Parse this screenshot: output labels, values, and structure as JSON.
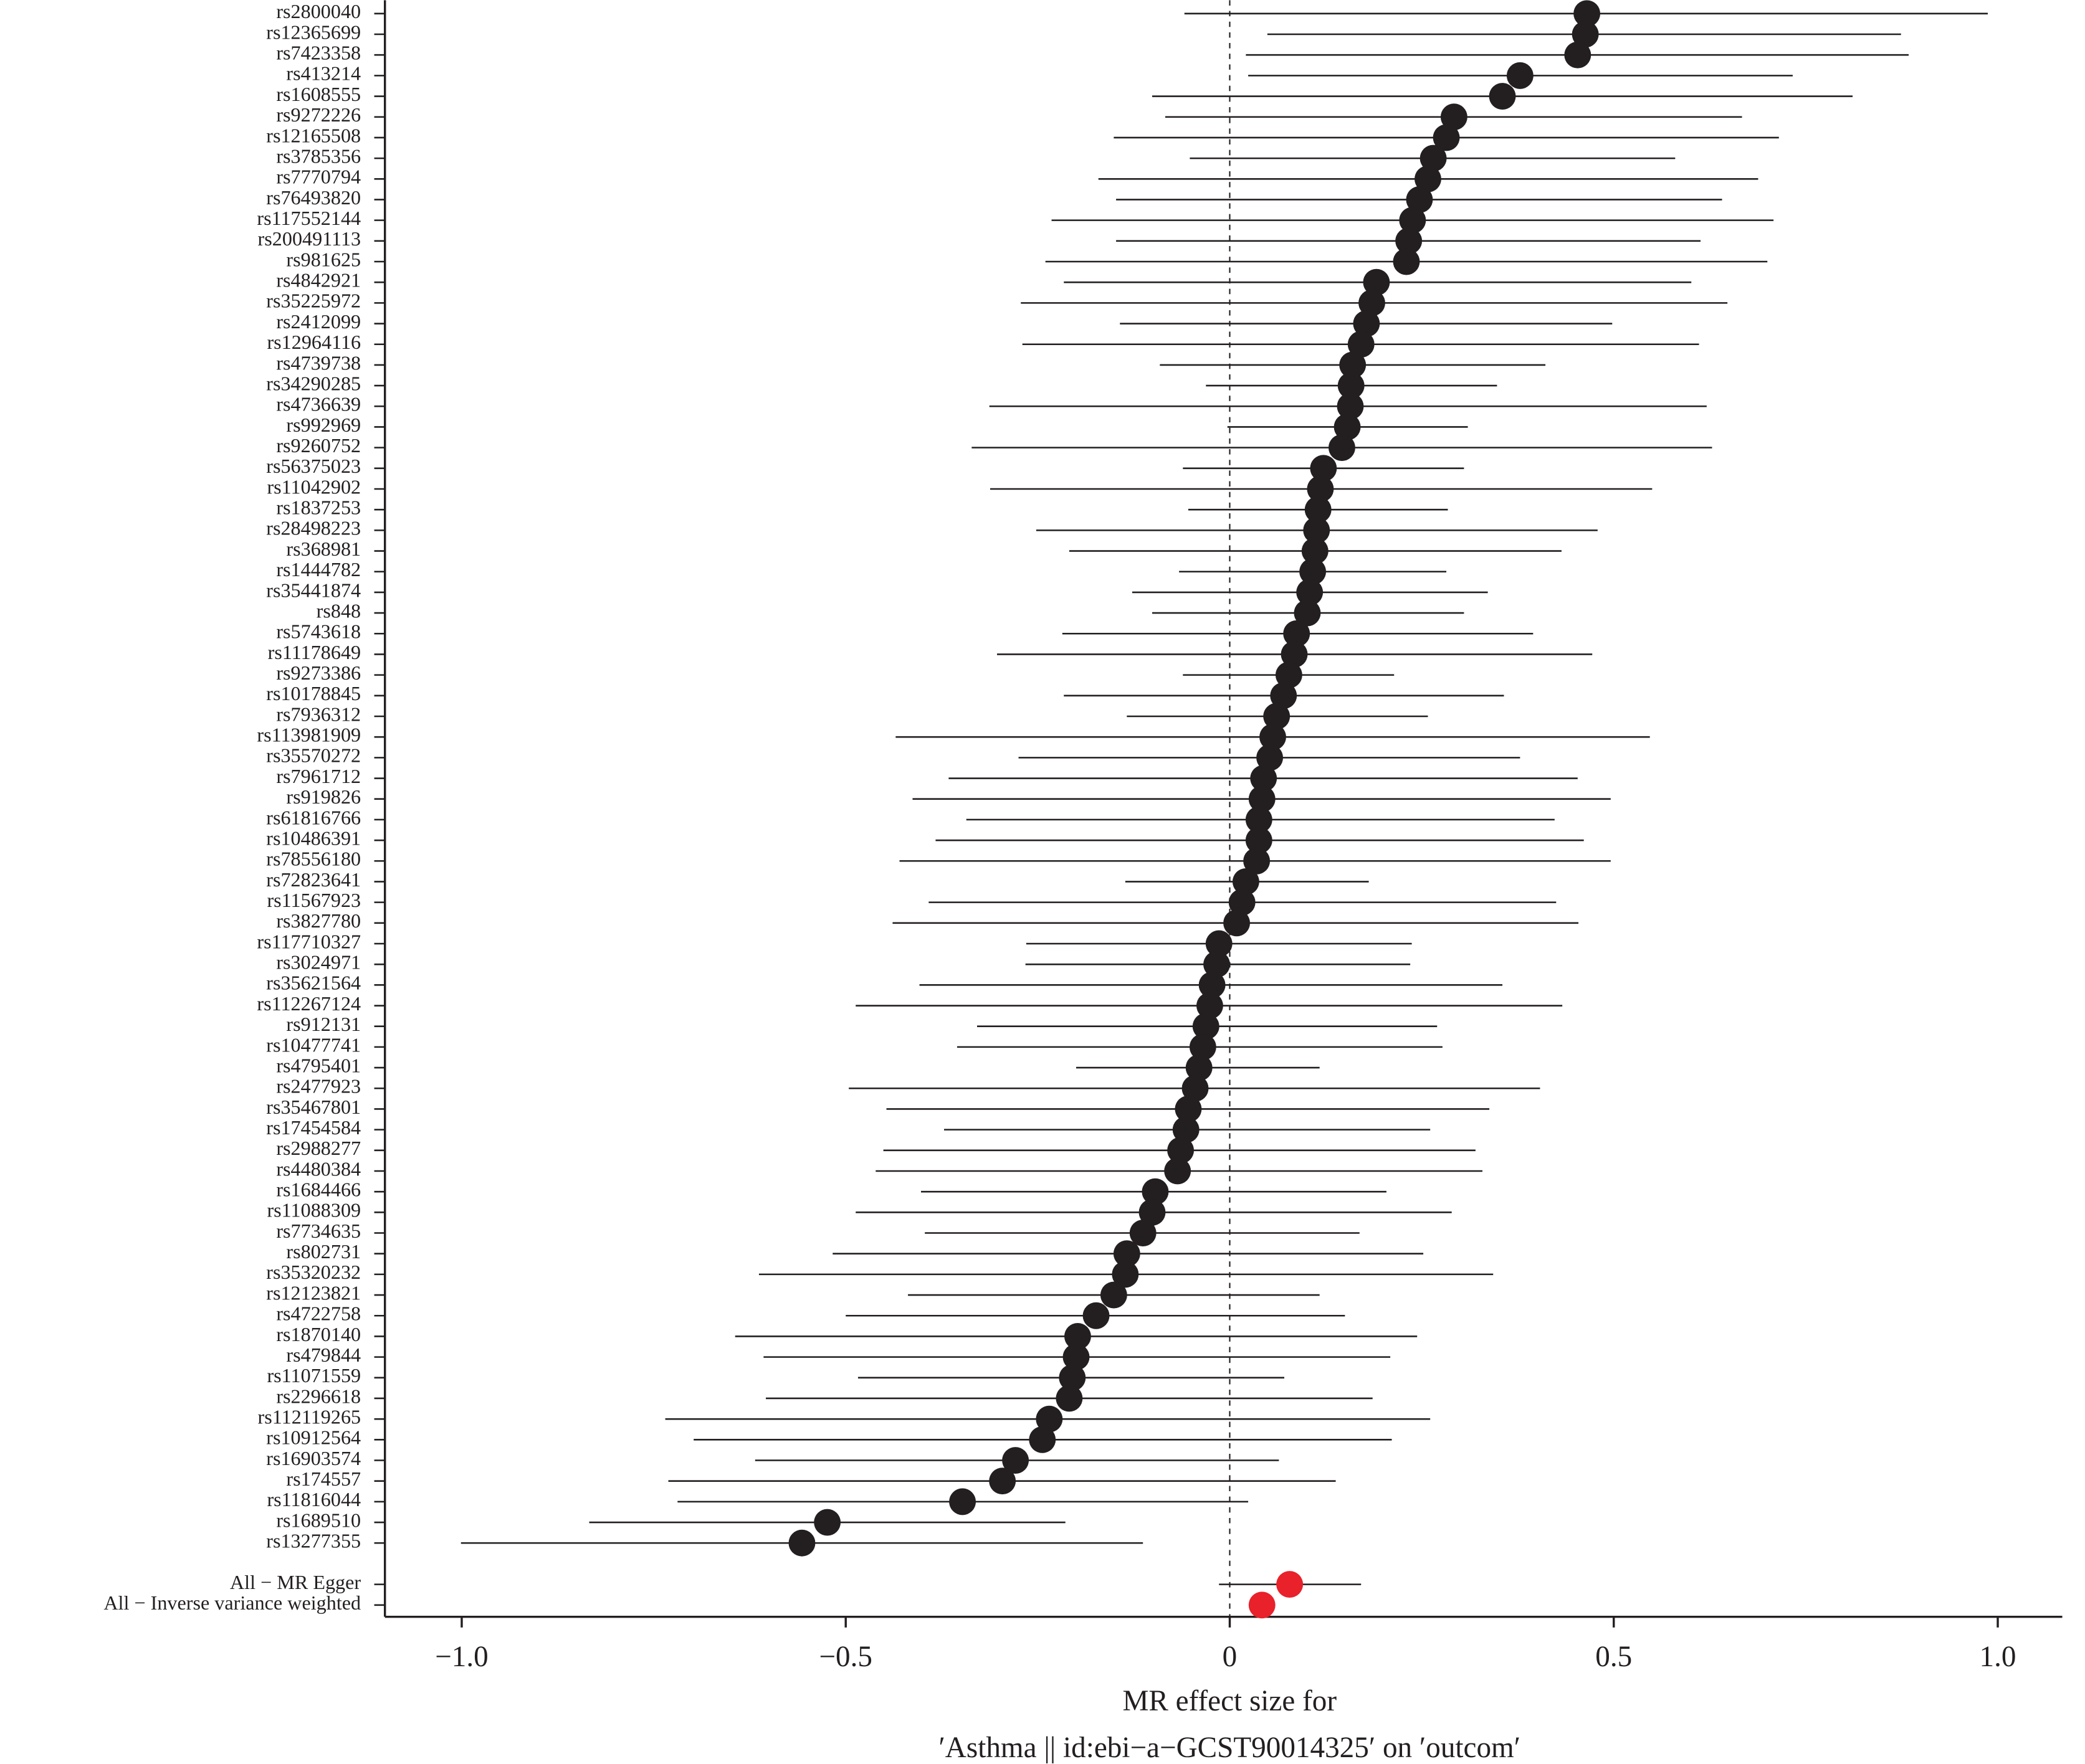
{
  "chart_data": {
    "type": "forest",
    "xlabel": [
      "MR effect size for",
      "′Asthma || id:ebi−a−GCST90014325′ on ′outcom′"
    ],
    "xlim": [
      -1.1,
      1.084
    ],
    "xticks": [
      {
        "value": -1,
        "label": "−1.0"
      },
      {
        "value": -0.5,
        "label": "−0.5"
      },
      0,
      {
        "value": 0.5,
        "label": "0.5"
      },
      {
        "value": 1,
        "label": "1.0"
      }
    ],
    "ref_line": 0,
    "series": [
      {
        "color": "#231f20",
        "categories": [
          "rs2800040",
          "rs12365699",
          "rs7423358",
          "rs413214",
          "rs1608555",
          "rs9272226",
          "rs12165508",
          "rs3785356",
          "rs7770794",
          "rs76493820",
          "rs117552144",
          "rs200491113",
          "rs981625",
          "rs4842921",
          "rs35225972",
          "rs2412099",
          "rs12964116",
          "rs4739738",
          "rs34290285",
          "rs4736639",
          "rs992969",
          "rs9260752",
          "rs56375023",
          "rs11042902",
          "rs1837253",
          "rs28498223",
          "rs368981",
          "rs1444782",
          "rs35441874",
          "rs848",
          "rs5743618",
          "rs11178649",
          "rs9273386",
          "rs10178845",
          "rs7936312",
          "rs113981909",
          "rs35570272",
          "rs7961712",
          "rs919826",
          "rs61816766",
          "rs10486391",
          "rs78556180",
          "rs72823641",
          "rs11567923",
          "rs3827780",
          "rs117710327",
          "rs3024971",
          "rs35621564",
          "rs112267124",
          "rs912131",
          "rs10477741",
          "rs4795401",
          "rs2477923",
          "rs35467801",
          "rs17454584",
          "rs2988277",
          "rs4480384",
          "rs1684466",
          "rs11088309",
          "rs7734635",
          "rs802731",
          "rs35320232",
          "rs12123821",
          "rs4722758",
          "rs1870140",
          "rs479844",
          "rs11071559",
          "rs2296618",
          "rs112119265",
          "rs10912564",
          "rs16903574",
          "rs174557",
          "rs11816044",
          "rs1689510",
          "rs13277355"
        ],
        "values": [
          0.465,
          0.463,
          0.453,
          0.378,
          0.355,
          0.292,
          0.282,
          0.265,
          0.258,
          0.247,
          0.238,
          0.233,
          0.23,
          0.191,
          0.185,
          0.178,
          0.171,
          0.16,
          0.158,
          0.157,
          0.153,
          0.146,
          0.122,
          0.118,
          0.115,
          0.113,
          0.111,
          0.108,
          0.104,
          0.101,
          0.087,
          0.084,
          0.077,
          0.07,
          0.061,
          0.056,
          0.052,
          0.044,
          0.042,
          0.038,
          0.038,
          0.035,
          0.021,
          0.016,
          0.009,
          -0.014,
          -0.017,
          -0.023,
          -0.026,
          -0.031,
          -0.035,
          -0.04,
          -0.045,
          -0.054,
          -0.057,
          -0.064,
          -0.068,
          -0.097,
          -0.101,
          -0.113,
          -0.134,
          -0.136,
          -0.151,
          -0.174,
          -0.198,
          -0.2,
          -0.205,
          -0.209,
          -0.235,
          -0.244,
          -0.279,
          -0.296,
          -0.348,
          -0.524,
          -0.557
        ],
        "lower": [
          -0.059,
          0.049,
          0.021,
          0.024,
          -0.101,
          -0.084,
          -0.151,
          -0.052,
          -0.171,
          -0.148,
          -0.232,
          -0.148,
          -0.24,
          -0.216,
          -0.272,
          -0.143,
          -0.27,
          -0.091,
          -0.031,
          -0.313,
          -0.003,
          -0.336,
          -0.061,
          -0.312,
          -0.054,
          -0.252,
          -0.209,
          -0.066,
          -0.127,
          -0.101,
          -0.218,
          -0.303,
          -0.061,
          -0.216,
          -0.134,
          -0.435,
          -0.275,
          -0.366,
          -0.413,
          -0.343,
          -0.383,
          -0.43,
          -0.136,
          -0.392,
          -0.439,
          -0.265,
          -0.266,
          -0.404,
          -0.487,
          -0.329,
          -0.355,
          -0.2,
          -0.496,
          -0.447,
          -0.372,
          -0.451,
          -0.461,
          -0.402,
          -0.487,
          -0.397,
          -0.517,
          -0.613,
          -0.419,
          -0.5,
          -0.644,
          -0.607,
          -0.484,
          -0.604,
          -0.735,
          -0.698,
          -0.618,
          -0.731,
          -0.719,
          -0.834,
          -1.001
        ],
        "upper": [
          0.987,
          0.874,
          0.884,
          0.733,
          0.811,
          0.667,
          0.715,
          0.58,
          0.688,
          0.641,
          0.708,
          0.613,
          0.7,
          0.601,
          0.648,
          0.498,
          0.611,
          0.411,
          0.348,
          0.621,
          0.31,
          0.628,
          0.305,
          0.55,
          0.284,
          0.479,
          0.432,
          0.282,
          0.336,
          0.305,
          0.395,
          0.472,
          0.214,
          0.357,
          0.258,
          0.547,
          0.378,
          0.453,
          0.496,
          0.423,
          0.461,
          0.496,
          0.181,
          0.425,
          0.454,
          0.237,
          0.235,
          0.355,
          0.433,
          0.27,
          0.277,
          0.117,
          0.404,
          0.338,
          0.261,
          0.32,
          0.329,
          0.204,
          0.289,
          0.169,
          0.252,
          0.343,
          0.117,
          0.15,
          0.244,
          0.209,
          0.071,
          0.186,
          0.261,
          0.211,
          0.064,
          0.138,
          0.024,
          -0.214,
          -0.113
        ]
      },
      {
        "color": "#e8212a",
        "categories": [
          "All − MR Egger",
          "All − Inverse variance weighted"
        ],
        "values": [
          0.078,
          0.042
        ],
        "lower": [
          -0.014,
          0.028
        ],
        "upper": [
          0.171,
          0.056
        ]
      }
    ]
  }
}
